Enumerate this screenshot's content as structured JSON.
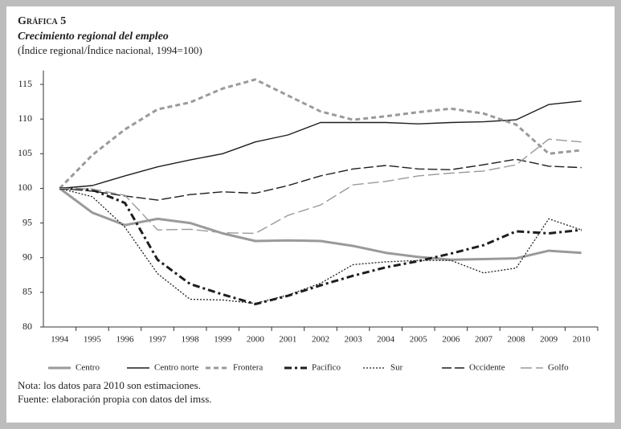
{
  "chart_data": {
    "type": "line",
    "title": "Gráfica 5",
    "subtitle": "Crecimiento regional del empleo",
    "description": "(Índice regional/Índice nacional, 1994=100)",
    "notes": [
      "Nota: los datos para 2010 son estimaciones.",
      "Fuente: elaboración propia con datos del imss."
    ],
    "categories": [
      "1994",
      "1995",
      "1996",
      "1997",
      "1998",
      "1999",
      "2000",
      "2001",
      "2002",
      "2003",
      "2004",
      "2005",
      "2006",
      "2007",
      "2008",
      "2009",
      "2010"
    ],
    "ylim": [
      80,
      117
    ],
    "yticks": [
      80,
      85,
      90,
      95,
      100,
      105,
      110,
      115
    ],
    "grid": false,
    "legend": "bottom",
    "series": [
      {
        "name": "Centro",
        "color": "#9a9a9a",
        "values": [
          100,
          96.5,
          94.7,
          95.6,
          95.0,
          93.5,
          92.4,
          92.5,
          92.4,
          91.7,
          90.7,
          90.1,
          89.7,
          89.8,
          89.9,
          91.0,
          90.7
        ]
      },
      {
        "name": "Centro norte",
        "color": "#1e1e1e",
        "values": [
          100,
          100.4,
          101.8,
          103.1,
          104.1,
          105.0,
          106.7,
          107.7,
          109.5,
          109.5,
          109.5,
          109.3,
          109.5,
          109.6,
          109.9,
          112.1,
          112.6
        ]
      },
      {
        "name": "Frontera",
        "color": "#9a9a9a",
        "values": [
          100,
          104.8,
          108.5,
          111.4,
          112.4,
          114.4,
          115.7,
          113.4,
          111.1,
          109.9,
          110.4,
          111.0,
          111.5,
          110.8,
          109.2,
          105.0,
          105.5
        ]
      },
      {
        "name": "Pacífico",
        "color": "#1e1e1e",
        "values": [
          100,
          99.8,
          97.9,
          89.7,
          86.2,
          84.7,
          83.3,
          84.5,
          86.0,
          87.4,
          88.6,
          89.5,
          90.6,
          91.8,
          93.8,
          93.5,
          94.0
        ]
      },
      {
        "name": "Sur",
        "color": "#1e1e1e",
        "values": [
          100,
          98.8,
          94.4,
          87.7,
          84.0,
          83.9,
          83.4,
          84.6,
          86.3,
          89.0,
          89.4,
          89.6,
          89.6,
          87.8,
          88.5,
          95.6,
          94.0
        ]
      },
      {
        "name": "Occidente",
        "color": "#1e1e1e",
        "values": [
          100,
          99.6,
          98.9,
          98.3,
          99.1,
          99.5,
          99.3,
          100.4,
          101.8,
          102.8,
          103.3,
          102.8,
          102.7,
          103.4,
          104.2,
          103.2,
          103.0
        ]
      },
      {
        "name": "Golfo",
        "color": "#9a9a9a",
        "values": [
          100,
          99.9,
          99.0,
          94.0,
          94.1,
          93.6,
          93.5,
          96.1,
          97.6,
          100.5,
          101.0,
          101.8,
          102.2,
          102.5,
          103.4,
          107.1,
          106.7
        ]
      }
    ]
  }
}
